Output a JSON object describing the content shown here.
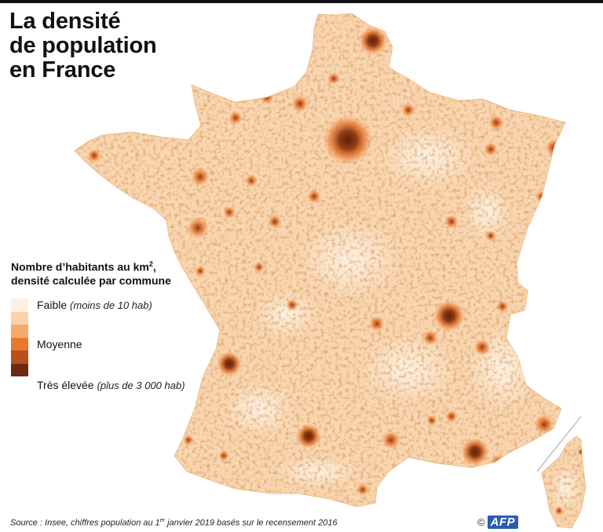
{
  "title": {
    "line1": "La densité",
    "line2": "de population",
    "line3": "en France"
  },
  "legend": {
    "heading_line1_text": "Nombre d’habitants au km",
    "heading_line1_sup": "2",
    "heading_line1_end": ",",
    "heading_line2": "densité calculée par commune",
    "classes": [
      {
        "label": "Faible",
        "note": "(moins de 10 hab)",
        "color": "#fdf0e0"
      },
      {
        "label": "",
        "note": "",
        "color": "#fbd3ab"
      },
      {
        "label": "Moyenne",
        "note": "",
        "color": "#f6a96d"
      },
      {
        "label": "",
        "note": "",
        "color": "#e9772f"
      },
      {
        "label": "",
        "note": "",
        "color": "#b8501c"
      },
      {
        "label": "Très élevée",
        "note": "(plus de 3 000 hab)",
        "color": "#6e2a0e"
      }
    ]
  },
  "source": {
    "prefix": "Source : Insee, chiffres population au 1",
    "sup": "er",
    "suffix": " janvier 2019 basés sur le recensement 2016"
  },
  "credit": {
    "copyright": "©",
    "logo_text": "AFP"
  },
  "colors": {
    "land_base": "#f9d6b0",
    "land_light": "#fde9d3",
    "dense": "#6e2a0e",
    "medium": "#e9772f"
  }
}
